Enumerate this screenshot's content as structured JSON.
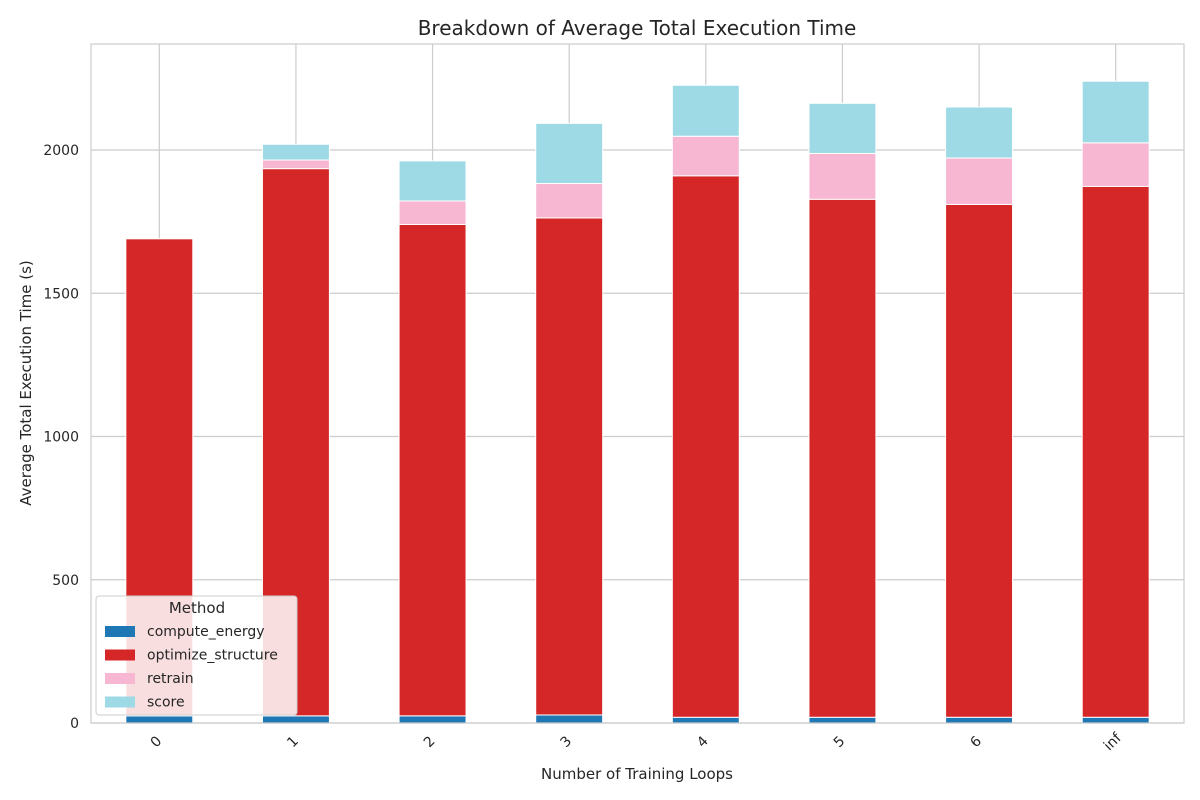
{
  "chart_data": {
    "type": "bar",
    "stacked": true,
    "title": "Breakdown of Average Total Execution Time",
    "xlabel": "Number of Training Loops",
    "ylabel": "Average Total Execution Time (s)",
    "categories": [
      "0",
      "1",
      "2",
      "3",
      "4",
      "5",
      "6",
      "inf"
    ],
    "ylim": [
      0,
      2370
    ],
    "yticks": [
      0,
      500,
      1000,
      1500,
      2000
    ],
    "grid": true,
    "legend": {
      "title": "Method",
      "placement": "lower-left"
    },
    "series": [
      {
        "name": "compute_energy",
        "color": "#1f77b4",
        "values": [
          25,
          25,
          25,
          28,
          20,
          20,
          20,
          20
        ]
      },
      {
        "name": "optimize_structure",
        "color": "#d62728",
        "values": [
          1665,
          1910,
          1715,
          1735,
          1890,
          1808,
          1790,
          1853
        ]
      },
      {
        "name": "retrain",
        "color": "#f7b6d2",
        "values": [
          0,
          30,
          82,
          120,
          138,
          160,
          162,
          152
        ]
      },
      {
        "name": "score",
        "color": "#9edae5",
        "values": [
          0,
          55,
          140,
          210,
          178,
          175,
          178,
          215
        ]
      }
    ]
  }
}
